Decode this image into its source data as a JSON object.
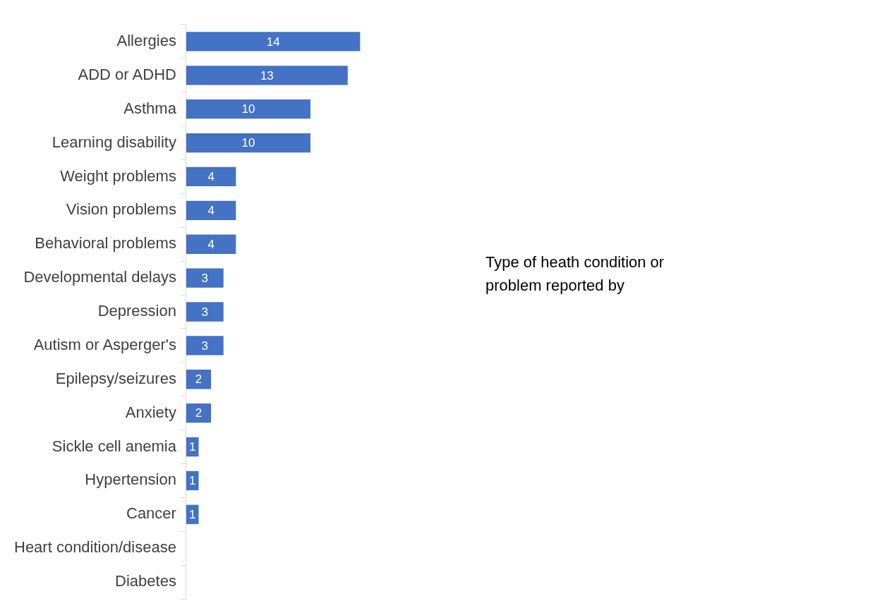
{
  "chart_data": {
    "type": "bar",
    "orientation": "horizontal",
    "categories": [
      "Allergies",
      "ADD or ADHD",
      "Asthma",
      "Learning disability",
      "Weight problems",
      "Vision problems",
      "Behavioral problems",
      "Developmental delays",
      "Depression",
      "Autism or Asperger's",
      "Epilepsy/seizures",
      "Anxiety",
      "Sickle cell anemia",
      "Hypertension",
      "Cancer",
      "Heart condition/disease",
      "Diabetes"
    ],
    "values": [
      14,
      13,
      10,
      10,
      4,
      4,
      4,
      3,
      3,
      3,
      2,
      2,
      1,
      1,
      1,
      0,
      0
    ],
    "value_labels": [
      "14",
      "13",
      "10",
      "10",
      "4",
      "4",
      "4",
      "3",
      "3",
      "3",
      "2",
      "2",
      "1",
      "1",
      "1",
      null,
      null
    ],
    "color": "#4472c4",
    "annotations": [
      "Type of heath condition or problem reported by"
    ],
    "tick_labels": "y",
    "grid": false,
    "legend": false
  }
}
